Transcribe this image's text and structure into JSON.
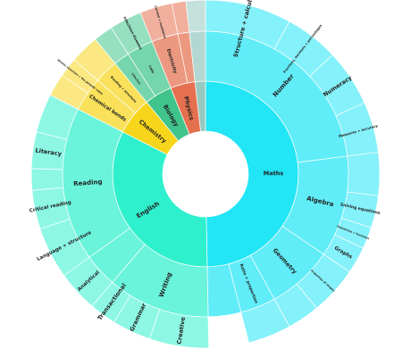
{
  "chart_data": {
    "type": "sunburst",
    "tree": [
      {
        "name": "Maths",
        "value": 49.7,
        "color": "#22e6f5",
        "label_size": 6.5,
        "children": [
          {
            "name": "Number",
            "value": 23,
            "label_size": 7,
            "children": [
              {
                "name": "Structure + calculation",
                "value": 8,
                "label_size": 6.5
              },
              {
                "name": "Fractions, decimals + percentages",
                "value": 5,
                "label_size": 3.5
              },
              {
                "name": "Numeracy",
                "value": 5.3,
                "label_size": 6.5
              },
              {
                "name": "Measures + accuracy",
                "value": 4.7,
                "label_size": 3.8
              }
            ]
          },
          {
            "name": "Algebra",
            "value": 11.5,
            "label_size": 7,
            "children": [
              {
                "name": "",
                "value": 4
              },
              {
                "name": "Solving equations",
                "value": 3,
                "label_size": 4.5
              },
              {
                "name": "Sequences + functions",
                "value": 2,
                "label_size": 3
              },
              {
                "name": "Graphs",
                "value": 2.5,
                "label_size": 5.5
              }
            ]
          },
          {
            "name": "Geometry",
            "value": 7.5,
            "label_size": 6.5,
            "children": [
              {
                "name": "Properties of shapes",
                "value": 4.5,
                "label_size": 3
              },
              {
                "name": "",
                "value": 3
              }
            ]
          },
          {
            "name": "Ratio + proportion",
            "value": 4,
            "label_size": 4.5,
            "children": [
              {
                "name": "",
                "value": 4
              }
            ]
          },
          {
            "name": "",
            "value": 3.7
          }
        ]
      },
      {
        "name": "English",
        "value": 32.8,
        "color": "#2ff0cd",
        "label_size": 7,
        "children": [
          {
            "name": "Writing",
            "value": 11.6,
            "label_size": 7,
            "children": [
              {
                "name": "Creative",
                "value": 5.5,
                "label_size": 6.5
              },
              {
                "name": "Grammar",
                "value": 3.6,
                "label_size": 6.5
              },
              {
                "name": "Transactional",
                "value": 2.5,
                "label_size": 6.5
              }
            ]
          },
          {
            "name": "",
            "value": 3.8,
            "children": [
              {
                "name": "Analytical",
                "value": 3.8,
                "label_size": 5.5
              }
            ]
          },
          {
            "name": "Reading",
            "value": 17.4,
            "label_size": 7,
            "children": [
              {
                "name": "Language + structure",
                "value": 4.8,
                "label_size": 5.5
              },
              {
                "name": "Critical reading",
                "value": 3.6,
                "label_size": 5.5
              },
              {
                "name": "",
                "value": 2
              },
              {
                "name": "Literacy",
                "value": 3.4,
                "label_size": 6.5
              },
              {
                "name": "",
                "value": 3.6
              }
            ]
          }
        ]
      },
      {
        "name": "Chemistry",
        "value": 6.6,
        "color": "#f7d51b",
        "label_size": 6.5,
        "children": [
          {
            "name": "Chemical bonds",
            "value": 3.9,
            "label_size": 5.5,
            "children": [
              {
                "name": "",
                "value": 2.1
              },
              {
                "name": "Atomic structure + the periodic table",
                "value": 1.8,
                "label_size": 3
              }
            ]
          },
          {
            "name": "Bonding + structure",
            "value": 2.7,
            "label_size": 3.5,
            "children": [
              {
                "name": "",
                "value": 2.7
              }
            ]
          }
        ]
      },
      {
        "name": "Biology",
        "value": 4.8,
        "color": "#40c48c",
        "label_size": 6.5,
        "children": [
          {
            "name": "Infection",
            "value": 1.8,
            "label_size": 3,
            "children": [
              {
                "name": "",
                "value": 1.8
              }
            ]
          },
          {
            "name": "Cells",
            "value": 3,
            "label_size": 3.5,
            "children": [
              {
                "name": "Infectious diseases",
                "value": 3,
                "label_size": 3.8
              }
            ]
          }
        ]
      },
      {
        "name": "Physics",
        "value": 4.3,
        "color": "#e5704f",
        "label_size": 6.5,
        "children": [
          {
            "name": "Electricity",
            "value": 3,
            "label_size": 5,
            "children": [
              {
                "name": "Current + resistance",
                "value": 3,
                "label_size": 3.3
              }
            ]
          },
          {
            "name": "",
            "value": 1.3,
            "children": [
              {
                "name": "",
                "value": 1.3
              }
            ]
          }
        ]
      },
      {
        "name": "",
        "value": 1.8,
        "color": "#96c9bf",
        "children": [
          {
            "name": "",
            "value": 1.8,
            "children": [
              {
                "name": "",
                "value": 1.8
              }
            ]
          }
        ]
      }
    ]
  }
}
